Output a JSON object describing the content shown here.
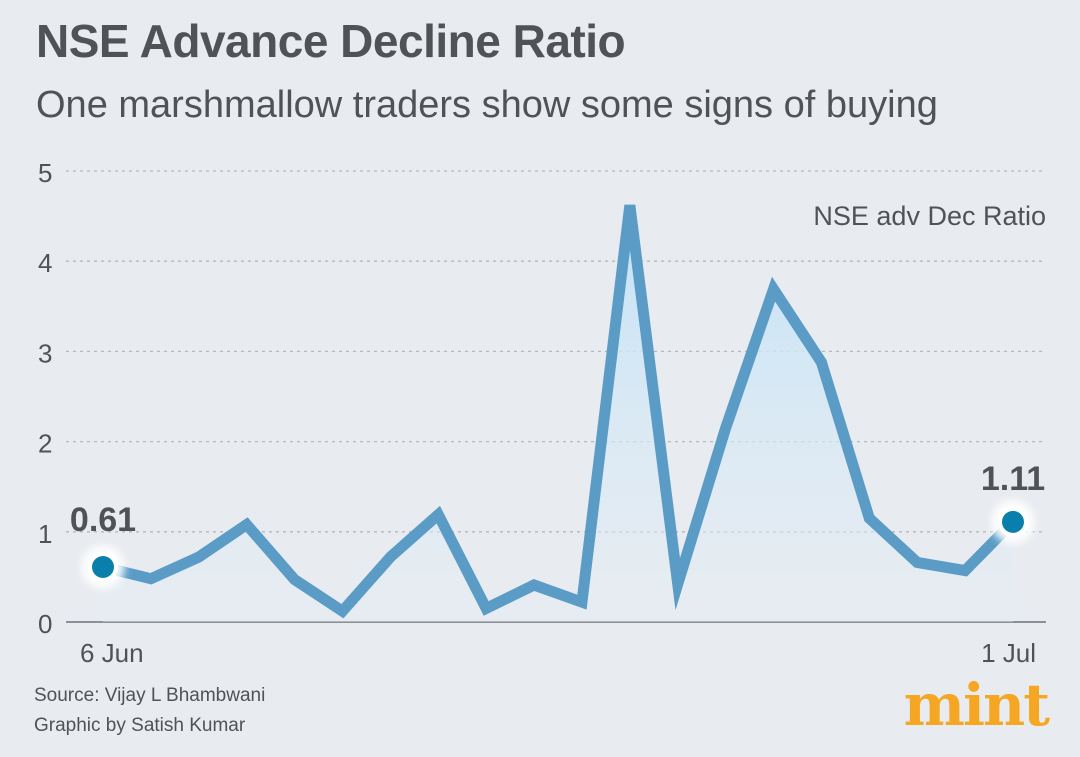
{
  "header": {
    "title": "NSE Advance Decline Ratio",
    "subtitle": "One marshmallow traders show some signs of buying"
  },
  "footer": {
    "source": "Source: Vijay L Bhambwani",
    "credit": "Graphic by Satish Kumar",
    "logo": "mint"
  },
  "colors": {
    "line": "#5a9cc6",
    "area_top": "#c2e2f7",
    "marker": "#0b7fac",
    "logo": "#f5a623",
    "text": "#505257"
  },
  "chart_data": {
    "type": "area",
    "title": "NSE Advance Decline Ratio",
    "subtitle": "One marshmallow traders show some signs of buying",
    "series": [
      {
        "name": "NSE adv Dec Ratio",
        "values": [
          0.61,
          0.48,
          0.72,
          1.08,
          0.47,
          0.12,
          0.72,
          1.19,
          0.15,
          0.41,
          0.22,
          4.62,
          0.42,
          2.15,
          3.69,
          2.88,
          1.15,
          0.66,
          0.57,
          1.11
        ]
      }
    ],
    "x_ticks": [
      "6 Jun",
      "1 Jul"
    ],
    "y_ticks": [
      "0",
      "1",
      "2",
      "3",
      "4",
      "5"
    ],
    "ylim": [
      0,
      5
    ],
    "grid": true,
    "legend": "top-right",
    "annotations": [
      "0.61",
      "1.11"
    ]
  }
}
